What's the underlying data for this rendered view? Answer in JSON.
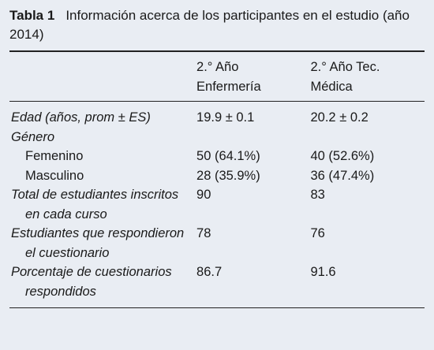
{
  "table": {
    "label": "Tabla 1",
    "title": "Información acerca de los participantes en el estudio (año 2014)",
    "columns": [
      "2.° Año Enfermería",
      "2.° Año Tec. Médica"
    ],
    "rows": [
      {
        "label": "Edad (años, prom ± ES)",
        "cells": [
          "19.9 ± 0.1",
          "20.2 ± 0.2"
        ],
        "style": "group"
      },
      {
        "label": "Género",
        "cells": [],
        "style": "group"
      },
      {
        "label": "Femenino",
        "cells": [
          "50 (64.1%)",
          "40 (52.6%)"
        ],
        "style": "sub"
      },
      {
        "label": "Masculino",
        "cells": [
          "28 (35.9%)",
          "36 (47.4%)"
        ],
        "style": "sub"
      },
      {
        "label": "Total de estudiantes inscritos en cada curso",
        "cells": [
          "90",
          "83"
        ],
        "style": "group"
      },
      {
        "label": "Estudiantes que respondieron el cuestionario",
        "cells": [
          "78",
          "76"
        ],
        "style": "group"
      },
      {
        "label": "Porcentaje de cuestionarios respondidos",
        "cells": [
          "86.7",
          "91.6"
        ],
        "style": "group"
      }
    ]
  }
}
